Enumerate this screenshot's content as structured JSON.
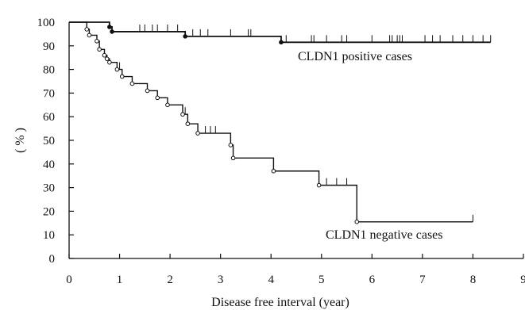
{
  "chart_data": {
    "type": "line",
    "subtype": "kaplan-meier survival curve",
    "title": "",
    "xlabel": "Disease free interval (year)",
    "ylabel": "( % )",
    "xlim": [
      0,
      9
    ],
    "ylim": [
      0,
      100
    ],
    "xticks": [
      0,
      1,
      2,
      3,
      4,
      5,
      6,
      7,
      8,
      9
    ],
    "yticks": [
      0,
      10,
      20,
      30,
      40,
      50,
      60,
      70,
      80,
      90,
      100
    ],
    "grid": false,
    "series": [
      {
        "name": "CLDN1 positive cases",
        "steps": [
          [
            0,
            100
          ],
          [
            0.8,
            98
          ],
          [
            0.85,
            96
          ],
          [
            2.3,
            94
          ],
          [
            4.2,
            91.5
          ],
          [
            8.35,
            91.5
          ]
        ],
        "events": [
          [
            0.8,
            98
          ],
          [
            0.85,
            96
          ],
          [
            2.3,
            94
          ],
          [
            4.2,
            91.5
          ]
        ],
        "censored": [
          [
            1.4,
            96
          ],
          [
            1.5,
            96
          ],
          [
            1.65,
            96
          ],
          [
            1.75,
            96
          ],
          [
            1.95,
            96
          ],
          [
            2.15,
            96
          ],
          [
            2.45,
            94
          ],
          [
            2.6,
            94
          ],
          [
            2.75,
            94
          ],
          [
            3.2,
            94
          ],
          [
            3.55,
            94
          ],
          [
            3.6,
            94
          ],
          [
            4.3,
            91.5
          ],
          [
            4.8,
            91.5
          ],
          [
            4.85,
            91.5
          ],
          [
            5.1,
            91.5
          ],
          [
            5.4,
            91.5
          ],
          [
            5.5,
            91.5
          ],
          [
            6.0,
            91.5
          ],
          [
            6.35,
            91.5
          ],
          [
            6.4,
            91.5
          ],
          [
            6.5,
            91.5
          ],
          [
            6.55,
            91.5
          ],
          [
            6.6,
            91.5
          ],
          [
            7.05,
            91.5
          ],
          [
            7.2,
            91.5
          ],
          [
            7.35,
            91.5
          ],
          [
            7.6,
            91.5
          ],
          [
            7.8,
            91.5
          ],
          [
            8.0,
            91.5
          ],
          [
            8.2,
            91.5
          ],
          [
            8.35,
            91.5
          ]
        ]
      },
      {
        "name": "CLDN1 negative cases",
        "steps": [
          [
            0,
            100
          ],
          [
            0.35,
            97
          ],
          [
            0.4,
            94.5
          ],
          [
            0.55,
            92
          ],
          [
            0.6,
            88.5
          ],
          [
            0.7,
            86
          ],
          [
            0.75,
            84.5
          ],
          [
            0.8,
            83
          ],
          [
            0.95,
            80
          ],
          [
            1.05,
            77
          ],
          [
            1.25,
            74
          ],
          [
            1.55,
            71
          ],
          [
            1.75,
            68
          ],
          [
            1.95,
            65
          ],
          [
            2.25,
            61
          ],
          [
            2.35,
            57
          ],
          [
            2.55,
            53
          ],
          [
            3.2,
            48
          ],
          [
            3.25,
            42.5
          ],
          [
            4.05,
            37
          ],
          [
            4.95,
            31
          ],
          [
            5.7,
            15.5
          ],
          [
            8.0,
            15.5
          ]
        ],
        "events": [
          [
            0.35,
            97
          ],
          [
            0.4,
            94.5
          ],
          [
            0.55,
            92
          ],
          [
            0.6,
            88.5
          ],
          [
            0.7,
            86
          ],
          [
            0.75,
            84.5
          ],
          [
            0.8,
            83
          ],
          [
            0.95,
            80
          ],
          [
            1.05,
            77
          ],
          [
            1.25,
            74
          ],
          [
            1.55,
            71
          ],
          [
            1.75,
            68
          ],
          [
            1.95,
            65
          ],
          [
            2.25,
            61
          ],
          [
            2.35,
            57
          ],
          [
            2.55,
            53
          ],
          [
            3.2,
            48
          ],
          [
            3.25,
            42.5
          ],
          [
            4.05,
            37
          ],
          [
            4.95,
            31
          ],
          [
            5.7,
            15.5
          ]
        ],
        "censored": [
          [
            1.0,
            80
          ],
          [
            2.3,
            61
          ],
          [
            2.7,
            53
          ],
          [
            2.8,
            53
          ],
          [
            2.9,
            53
          ],
          [
            5.1,
            31
          ],
          [
            5.3,
            31
          ],
          [
            5.5,
            31
          ],
          [
            8.0,
            15.5
          ]
        ]
      }
    ]
  }
}
